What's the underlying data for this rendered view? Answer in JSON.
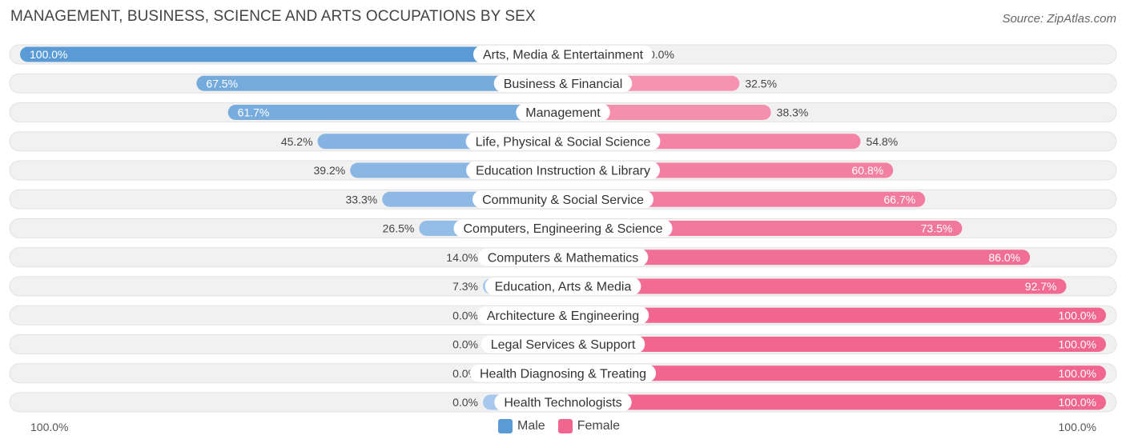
{
  "title": "MANAGEMENT, BUSINESS, SCIENCE AND ARTS OCCUPATIONS BY SEX",
  "source": "Source: ZipAtlas.com",
  "colors": {
    "male_full": "#5b9bd5",
    "male_light": "#a7c8ec",
    "female_full": "#f0668f",
    "female_light": "#f7a8c0"
  },
  "axis": {
    "left_label": "100.0%",
    "right_label": "100.0%"
  },
  "legend": {
    "male": "Male",
    "female": "Female"
  },
  "chart_data": {
    "type": "bar",
    "orientation": "horizontal-diverging",
    "title": "MANAGEMENT, BUSINESS, SCIENCE AND ARTS OCCUPATIONS BY SEX",
    "categories": [
      "Arts, Media & Entertainment",
      "Business & Financial",
      "Management",
      "Life, Physical & Social Science",
      "Education Instruction & Library",
      "Community & Social Service",
      "Computers, Engineering & Science",
      "Computers & Mathematics",
      "Education, Arts & Media",
      "Architecture & Engineering",
      "Legal Services & Support",
      "Health Diagnosing & Treating",
      "Health Technologists"
    ],
    "series": [
      {
        "name": "Male",
        "values": [
          100.0,
          67.5,
          61.7,
          45.2,
          39.2,
          33.3,
          26.5,
          14.0,
          7.3,
          0.0,
          0.0,
          0.0,
          0.0
        ],
        "labels": [
          "100.0%",
          "67.5%",
          "61.7%",
          "45.2%",
          "39.2%",
          "33.3%",
          "26.5%",
          "14.0%",
          "7.3%",
          "0.0%",
          "0.0%",
          "0.0%",
          "0.0%"
        ]
      },
      {
        "name": "Female",
        "values": [
          0.0,
          32.5,
          38.3,
          54.8,
          60.8,
          66.7,
          73.5,
          86.0,
          92.7,
          100.0,
          100.0,
          100.0,
          100.0
        ],
        "labels": [
          "0.0%",
          "32.5%",
          "38.3%",
          "54.8%",
          "60.8%",
          "66.7%",
          "73.5%",
          "86.0%",
          "92.7%",
          "100.0%",
          "100.0%",
          "100.0%",
          "100.0%"
        ]
      }
    ],
    "xlim": [
      0,
      100
    ],
    "legend_position": "bottom-center"
  }
}
